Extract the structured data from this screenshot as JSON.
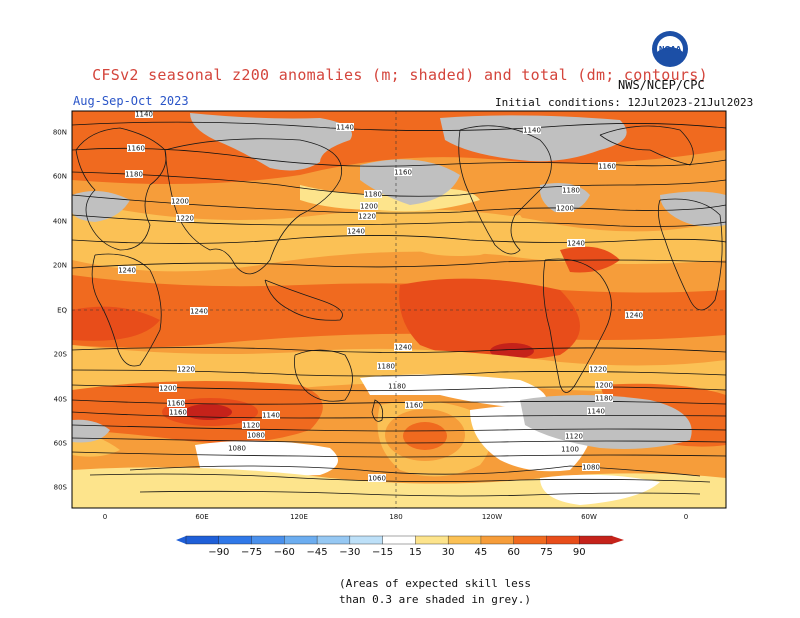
{
  "header": {
    "title": "CFSv2 seasonal z200 anomalies (m; shaded) and total (dm; contours)",
    "agency": "NWS/NCEP/CPC",
    "season": "Aug-Sep-Oct 2023",
    "initial_conditions": "Initial conditions: 12Jul2023-21Jul2023",
    "logo_text": "NOAA"
  },
  "map": {
    "lat_labels": [
      "80N",
      "60N",
      "40N",
      "20N",
      "EQ",
      "20S",
      "40S",
      "60S",
      "80S"
    ],
    "lon_labels": [
      "0",
      "60E",
      "120E",
      "180",
      "120W",
      "60W",
      "0"
    ],
    "contour_labels": [
      "1140",
      "1140",
      "1140",
      "1160",
      "1160",
      "1160",
      "1180",
      "1180",
      "1180",
      "1200",
      "1200",
      "1200",
      "1220",
      "1220",
      "1240",
      "1240",
      "1240",
      "1240",
      "1240",
      "1240",
      "1220",
      "1220",
      "1200",
      "1200",
      "1180",
      "1180",
      "1180",
      "1160",
      "1160",
      "1140",
      "1140",
      "1120",
      "1120",
      "1100",
      "1080",
      "1080",
      "1080",
      "1060",
      "1160"
    ],
    "colors": {
      "grey": "#c0c0c0",
      "white": "#ffffff",
      "c15": "#fde48c",
      "c30": "#fbc155",
      "c45": "#f69d3a",
      "c60": "#f06a1f",
      "c75": "#e84d1a",
      "c90": "#c5221a"
    }
  },
  "colorbar": {
    "ticks": [
      "−90",
      "−75",
      "−60",
      "−45",
      "−30",
      "−15",
      "15",
      "30",
      "45",
      "60",
      "75",
      "90"
    ],
    "colors": [
      "#1f5fd8",
      "#2f78e8",
      "#4a90ec",
      "#6cadf0",
      "#96c8f3",
      "#bde0f8",
      "#ffffff",
      "#fde48c",
      "#fbc155",
      "#f69d3a",
      "#f06a1f",
      "#e84d1a",
      "#c5221a"
    ]
  },
  "note": {
    "line1": "(Areas of expected skill less",
    "line2": "than 0.3 are shaded in grey.)"
  }
}
